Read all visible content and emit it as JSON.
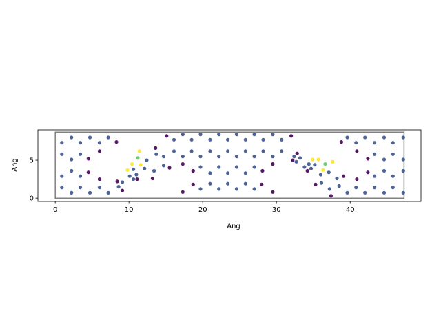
{
  "chart_data": {
    "type": "scatter",
    "title": "",
    "xlabel": "Ang",
    "ylabel": "Ang",
    "xlim": [
      -2.35,
      49.6
    ],
    "ylim": [
      -0.44,
      9.0
    ],
    "xticks": [
      0,
      10,
      20,
      30,
      40
    ],
    "yticks": [
      0,
      5
    ],
    "grid": false,
    "legend": "none",
    "equal_aspect": true,
    "cell_box": [
      [
        0,
        0
      ],
      [
        0,
        8.7
      ],
      [
        47.3,
        8.7
      ],
      [
        47.3,
        0
      ]
    ],
    "color_map": {
      "-1": "#440154",
      "0": "#3b528b",
      "1": "#21918c",
      "2": "#5ec962",
      "3": "#fde725"
    },
    "points": [
      [
        0.9,
        7.3,
        0
      ],
      [
        0.9,
        5.8,
        0
      ],
      [
        0.9,
        2.9,
        0
      ],
      [
        0.9,
        1.4,
        0
      ],
      [
        2.2,
        8.0,
        0
      ],
      [
        2.2,
        5.1,
        0
      ],
      [
        2.2,
        3.6,
        0
      ],
      [
        2.2,
        0.7,
        0
      ],
      [
        3.4,
        7.3,
        0
      ],
      [
        3.4,
        5.8,
        0
      ],
      [
        3.4,
        2.9,
        0
      ],
      [
        3.4,
        1.4,
        0
      ],
      [
        4.5,
        5.2,
        -1
      ],
      [
        4.5,
        3.4,
        -1
      ],
      [
        4.7,
        8.0,
        0
      ],
      [
        4.7,
        0.7,
        0
      ],
      [
        6.0,
        7.3,
        0
      ],
      [
        6.0,
        6.2,
        -1
      ],
      [
        6.0,
        2.5,
        -1
      ],
      [
        6.0,
        1.4,
        0
      ],
      [
        7.2,
        8.0,
        0
      ],
      [
        7.2,
        0.7,
        0
      ],
      [
        8.3,
        7.4,
        -1
      ],
      [
        8.4,
        2.2,
        -1
      ],
      [
        8.6,
        1.5,
        0
      ],
      [
        9.1,
        2.1,
        0
      ],
      [
        9.1,
        1.0,
        -1
      ],
      [
        9.8,
        3.7,
        3
      ],
      [
        10.1,
        2.9,
        0
      ],
      [
        10.4,
        4.5,
        3
      ],
      [
        10.6,
        3.8,
        0
      ],
      [
        10.6,
        2.5,
        0
      ],
      [
        11.0,
        3.1,
        0
      ],
      [
        11.1,
        2.5,
        -1
      ],
      [
        11.2,
        5.3,
        2
      ],
      [
        11.4,
        6.2,
        3
      ],
      [
        11.6,
        4.4,
        3
      ],
      [
        12.1,
        3.9,
        0
      ],
      [
        12.4,
        5.0,
        0
      ],
      [
        13.2,
        2.6,
        -1
      ],
      [
        13.4,
        3.6,
        0
      ],
      [
        13.6,
        6.6,
        -1
      ],
      [
        13.7,
        5.8,
        0
      ],
      [
        14.7,
        5.5,
        0
      ],
      [
        14.7,
        4.3,
        0
      ],
      [
        15.1,
        8.2,
        -1
      ],
      [
        15.5,
        4.0,
        -1
      ],
      [
        16.1,
        7.7,
        0
      ],
      [
        16.1,
        6.2,
        0
      ],
      [
        17.3,
        8.4,
        0
      ],
      [
        17.3,
        5.5,
        0
      ],
      [
        17.3,
        4.5,
        -1
      ],
      [
        17.3,
        0.8,
        -1
      ],
      [
        18.5,
        7.7,
        0
      ],
      [
        18.5,
        6.2,
        0
      ],
      [
        18.7,
        3.6,
        -1
      ],
      [
        18.7,
        1.8,
        -1
      ],
      [
        19.7,
        8.4,
        0
      ],
      [
        19.7,
        5.5,
        0
      ],
      [
        19.7,
        4.1,
        0
      ],
      [
        19.7,
        1.2,
        0
      ],
      [
        21.0,
        7.7,
        0
      ],
      [
        21.0,
        6.2,
        0
      ],
      [
        21.0,
        3.3,
        0
      ],
      [
        21.0,
        1.9,
        0
      ],
      [
        22.2,
        8.4,
        0
      ],
      [
        22.2,
        5.5,
        0
      ],
      [
        22.2,
        4.1,
        0
      ],
      [
        22.2,
        1.2,
        0
      ],
      [
        23.4,
        7.7,
        0
      ],
      [
        23.4,
        6.2,
        0
      ],
      [
        23.4,
        3.3,
        0
      ],
      [
        23.4,
        1.9,
        0
      ],
      [
        24.6,
        8.4,
        0
      ],
      [
        24.6,
        5.5,
        0
      ],
      [
        24.6,
        4.1,
        0
      ],
      [
        24.6,
        1.2,
        0
      ],
      [
        25.8,
        7.7,
        0
      ],
      [
        25.8,
        6.2,
        0
      ],
      [
        25.8,
        3.3,
        0
      ],
      [
        25.8,
        1.9,
        0
      ],
      [
        27.0,
        8.4,
        0
      ],
      [
        27.0,
        5.5,
        0
      ],
      [
        27.0,
        4.1,
        0
      ],
      [
        27.0,
        1.2,
        0
      ],
      [
        28.2,
        7.7,
        0
      ],
      [
        28.2,
        6.2,
        0
      ],
      [
        28.1,
        3.6,
        -1
      ],
      [
        28.0,
        1.8,
        -1
      ],
      [
        29.5,
        8.4,
        0
      ],
      [
        29.5,
        5.5,
        0
      ],
      [
        29.5,
        4.5,
        -1
      ],
      [
        29.5,
        0.8,
        -1
      ],
      [
        30.7,
        7.7,
        0
      ],
      [
        30.7,
        6.2,
        0
      ],
      [
        32.0,
        8.2,
        -1
      ],
      [
        32.2,
        5.0,
        -1
      ],
      [
        32.4,
        5.5,
        0
      ],
      [
        32.7,
        4.8,
        0
      ],
      [
        32.8,
        5.9,
        -1
      ],
      [
        33.2,
        5.3,
        0
      ],
      [
        33.8,
        4.1,
        0
      ],
      [
        34.2,
        3.6,
        -1
      ],
      [
        34.4,
        4.5,
        0
      ],
      [
        34.7,
        3.9,
        0
      ],
      [
        34.9,
        5.1,
        3
      ],
      [
        35.2,
        4.4,
        0
      ],
      [
        35.3,
        1.8,
        -1
      ],
      [
        35.7,
        5.1,
        3
      ],
      [
        36.0,
        3.1,
        0
      ],
      [
        36.1,
        2.0,
        0
      ],
      [
        36.3,
        3.7,
        3
      ],
      [
        36.6,
        4.5,
        2
      ],
      [
        37.1,
        3.4,
        0
      ],
      [
        37.2,
        1.2,
        0
      ],
      [
        37.4,
        0.3,
        -1
      ],
      [
        37.6,
        4.8,
        3
      ],
      [
        38.2,
        2.6,
        0
      ],
      [
        38.5,
        1.6,
        0
      ],
      [
        38.8,
        7.4,
        -1
      ],
      [
        39.1,
        2.9,
        -1
      ],
      [
        39.6,
        8.0,
        0
      ],
      [
        39.6,
        0.7,
        0
      ],
      [
        40.8,
        7.3,
        0
      ],
      [
        40.9,
        6.2,
        -1
      ],
      [
        40.9,
        2.5,
        -1
      ],
      [
        40.8,
        1.4,
        0
      ],
      [
        42.0,
        8.0,
        0
      ],
      [
        42.0,
        0.7,
        0
      ],
      [
        42.4,
        5.2,
        -1
      ],
      [
        42.4,
        3.4,
        -1
      ],
      [
        43.3,
        7.3,
        0
      ],
      [
        43.3,
        5.8,
        0
      ],
      [
        43.3,
        2.9,
        0
      ],
      [
        43.3,
        1.4,
        0
      ],
      [
        44.6,
        8.0,
        0
      ],
      [
        44.6,
        5.1,
        0
      ],
      [
        44.6,
        3.6,
        0
      ],
      [
        44.6,
        0.7,
        0
      ],
      [
        45.8,
        7.3,
        0
      ],
      [
        45.8,
        5.8,
        0
      ],
      [
        45.8,
        2.9,
        0
      ],
      [
        45.8,
        1.4,
        0
      ],
      [
        47.2,
        8.0,
        0
      ],
      [
        47.2,
        5.1,
        0
      ],
      [
        47.2,
        3.6,
        0
      ],
      [
        47.2,
        0.7,
        0
      ]
    ]
  }
}
